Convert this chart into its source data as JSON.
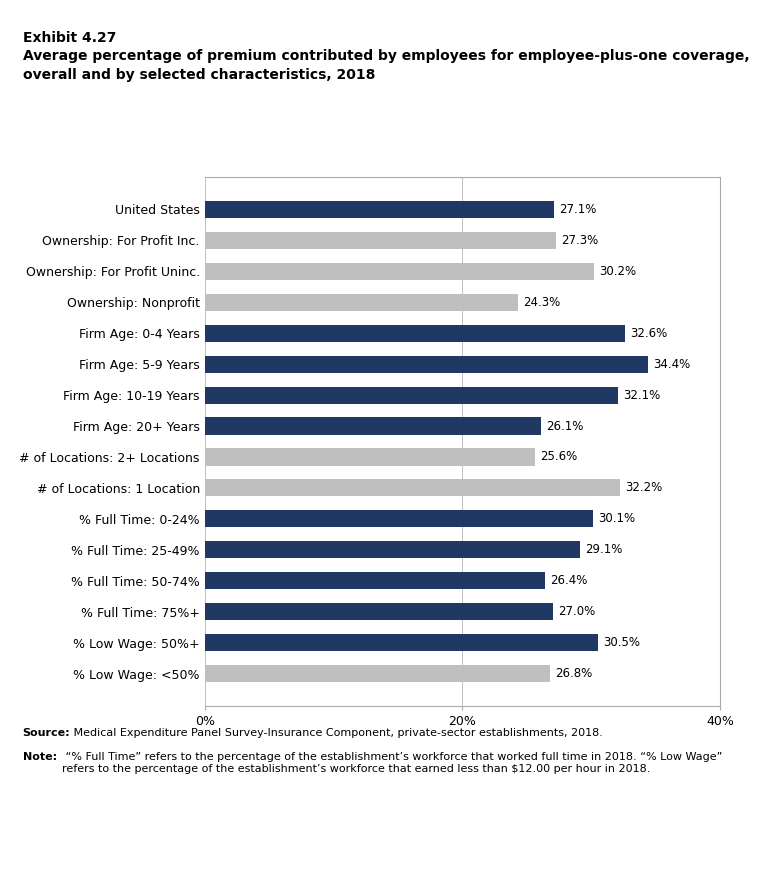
{
  "exhibit_label": "Exhibit 4.27",
  "title_line1": "Average percentage of premium contributed by employees for employee-plus-one coverage,",
  "title_line2": "overall and by selected characteristics, 2018",
  "categories": [
    "United States",
    "Ownership: For Profit Inc.",
    "Ownership: For Profit Uninc.",
    "Ownership: Nonprofit",
    "Firm Age: 0-4 Years",
    "Firm Age: 5-9 Years",
    "Firm Age: 10-19 Years",
    "Firm Age: 20+ Years",
    "# of Locations: 2+ Locations",
    "# of Locations: 1 Location",
    "% Full Time: 0-24%",
    "% Full Time: 25-49%",
    "% Full Time: 50-74%",
    "% Full Time: 75%+",
    "% Low Wage: 50%+",
    "% Low Wage: <50%"
  ],
  "values": [
    27.1,
    27.3,
    30.2,
    24.3,
    32.6,
    34.4,
    32.1,
    26.1,
    25.6,
    32.2,
    30.1,
    29.1,
    26.4,
    27.0,
    30.5,
    26.8
  ],
  "colors": [
    "#1F3864",
    "#BFBFBF",
    "#BFBFBF",
    "#BFBFBF",
    "#1F3864",
    "#1F3864",
    "#1F3864",
    "#1F3864",
    "#BFBFBF",
    "#BFBFBF",
    "#1F3864",
    "#1F3864",
    "#1F3864",
    "#1F3864",
    "#1F3864",
    "#BFBFBF"
  ],
  "xlim": [
    0,
    40
  ],
  "xticks": [
    0,
    20,
    40
  ],
  "xticklabels": [
    "0%",
    "20%",
    "40%"
  ],
  "source_bold": "Source:",
  "source_normal": " Medical Expenditure Panel Survey-Insurance Component, private-sector establishments, 2018.",
  "note_bold": "Note:",
  "note_normal": " “% Full Time” refers to the percentage of the establishment’s workforce that worked full time in 2018. “% Low Wage”\nrefers to the percentage of the establishment’s workforce that earned less than $12.00 per hour in 2018.",
  "bar_height": 0.55,
  "value_fontsize": 8.5,
  "tick_fontsize": 9,
  "title_fontsize": 10,
  "exhibit_fontsize": 10,
  "footer_fontsize": 8
}
